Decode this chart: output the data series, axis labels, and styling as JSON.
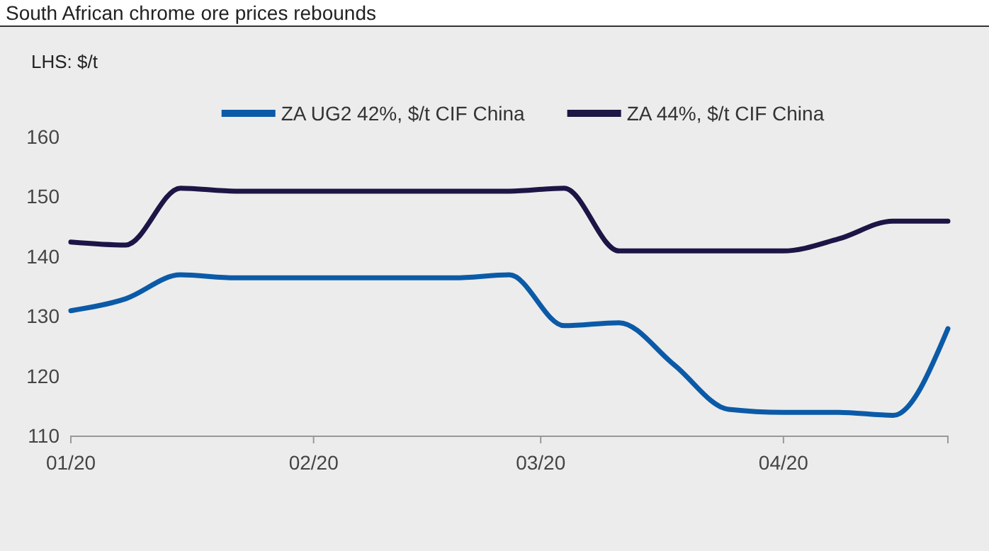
{
  "chart_data": {
    "type": "line",
    "title": "South African chrome ore prices rebounds",
    "annotations": [
      "LHS: $/t"
    ],
    "x": [
      "2020-01-01",
      "2020-01-08",
      "2020-01-15",
      "2020-01-22",
      "2020-01-29",
      "2020-02-05",
      "2020-02-12",
      "2020-02-19",
      "2020-02-26",
      "2020-03-04",
      "2020-03-11",
      "2020-03-18",
      "2020-03-25",
      "2020-04-01",
      "2020-04-08",
      "2020-04-15",
      "2020-04-22"
    ],
    "series": [
      {
        "name": "ZA UG2 42%, $/t CIF China",
        "color": "#0b5aa8",
        "values": [
          131,
          133,
          137,
          136.5,
          136.5,
          136.5,
          136.5,
          136.5,
          137,
          128.5,
          129,
          122,
          114.5,
          114,
          114,
          113.5,
          128
        ]
      },
      {
        "name": "ZA 44%, $/t CIF China",
        "color": "#1c1545",
        "values": [
          142.5,
          142,
          151.5,
          151,
          151,
          151,
          151,
          151,
          151,
          151.5,
          141,
          141,
          141,
          141,
          143,
          146,
          146
        ]
      }
    ],
    "xlim": [
      "2020-01-01",
      "2020-04-22"
    ],
    "xticks": [
      {
        "value": "2020-01-01",
        "label": "01/20"
      },
      {
        "value": "2020-02-01",
        "label": "02/20"
      },
      {
        "value": "2020-03-01",
        "label": "03/20"
      },
      {
        "value": "2020-04-01",
        "label": "04/20"
      }
    ],
    "ylim": [
      110,
      160
    ],
    "yticks": [
      110,
      120,
      130,
      140,
      150,
      160
    ],
    "grid": false,
    "legend": "top",
    "marker": "none",
    "line_style": "solid"
  }
}
